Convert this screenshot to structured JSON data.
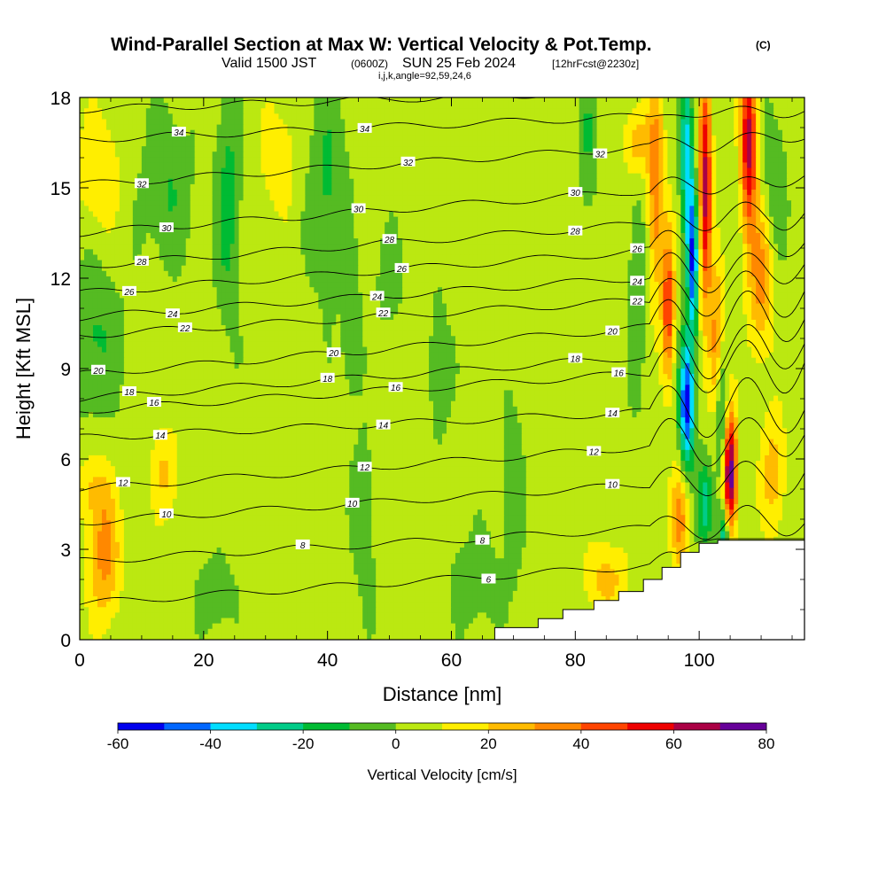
{
  "header": {
    "title": "Wind-Parallel Section at Max W: Vertical Velocity & Pot.Temp.",
    "title_unit": "(C)",
    "valid_prefix": "Valid 1500 JST",
    "valid_zulu": "(0600Z)",
    "valid_date": "SUN 25 Feb 2024",
    "valid_fcst": "[12hrFcst@2230z]",
    "indices": "i,j,k,angle=92,59,24,6"
  },
  "chart_data": {
    "type": "heatmap",
    "xlabel": "Distance [nm]",
    "ylabel": "Height [Kft MSL]",
    "xlim": [
      0,
      117
    ],
    "ylim": [
      0,
      18
    ],
    "x_ticks": [
      0,
      20,
      40,
      60,
      80,
      100
    ],
    "y_ticks": [
      0,
      3,
      6,
      9,
      12,
      15,
      18
    ],
    "colorbar": {
      "label": "Vertical Velocity [cm/s]",
      "tick_labels": [
        "-60",
        "-40",
        "-20",
        "0",
        "20",
        "40",
        "60",
        "80"
      ],
      "boundaries": [
        -60,
        -50,
        -40,
        -30,
        -20,
        -10,
        0,
        10,
        20,
        30,
        40,
        50,
        60,
        70,
        80
      ],
      "colors": [
        "#0000ee",
        "#0066ff",
        "#00ddff",
        "#00cc88",
        "#00bb33",
        "#55bb22",
        "#bbe811",
        "#ffee00",
        "#ffbb00",
        "#ff8800",
        "#ff4400",
        "#ee0000",
        "#aa0044",
        "#660099"
      ]
    },
    "terrain_kft": [
      [
        0,
        0
      ],
      [
        60,
        0
      ],
      [
        67,
        0.4
      ],
      [
        74,
        0.7
      ],
      [
        78,
        1.0
      ],
      [
        83,
        1.3
      ],
      [
        87,
        1.6
      ],
      [
        91,
        2.0
      ],
      [
        94,
        2.4
      ],
      [
        97,
        2.9
      ],
      [
        100,
        3.2
      ],
      [
        103,
        3.3
      ],
      [
        117,
        3.3
      ]
    ],
    "theta_contours": [
      {
        "value": 6,
        "left": 1.2,
        "right": 2.8,
        "label": "6",
        "label_x": 66
      },
      {
        "value": 8,
        "left": 2.6,
        "right": 4.0,
        "label": "8",
        "label_x": 36
      },
      {
        "value": 8,
        "left": 2.6,
        "right": 4.0,
        "label": "8",
        "label_x": 65
      },
      {
        "value": 10,
        "left": 3.9,
        "right": 5.5,
        "label": "10",
        "label_x": 14
      },
      {
        "value": 10,
        "left": 3.9,
        "right": 5.5,
        "label": "10",
        "label_x": 44
      },
      {
        "value": 10,
        "left": 3.9,
        "right": 5.5,
        "label": "10",
        "label_x": 86
      },
      {
        "value": 12,
        "left": 5.0,
        "right": 6.8,
        "label": "12",
        "label_x": 7
      },
      {
        "value": 12,
        "left": 5.0,
        "right": 6.8,
        "label": "12",
        "label_x": 46
      },
      {
        "value": 12,
        "left": 5.0,
        "right": 6.8,
        "label": "12",
        "label_x": 83
      },
      {
        "value": 14,
        "left": 6.7,
        "right": 7.8,
        "label": "14",
        "label_x": 13
      },
      {
        "value": 14,
        "left": 6.7,
        "right": 7.8,
        "label": "14",
        "label_x": 49
      },
      {
        "value": 14,
        "left": 6.7,
        "right": 7.8,
        "label": "14",
        "label_x": 86
      },
      {
        "value": 16,
        "left": 7.6,
        "right": 9.2,
        "label": "16",
        "label_x": 12
      },
      {
        "value": 16,
        "left": 7.6,
        "right": 9.2,
        "label": "16",
        "label_x": 51
      },
      {
        "value": 16,
        "left": 7.6,
        "right": 9.2,
        "label": "16",
        "label_x": 87
      },
      {
        "value": 18,
        "left": 8.0,
        "right": 9.8,
        "label": "18",
        "label_x": 8
      },
      {
        "value": 18,
        "left": 8.0,
        "right": 9.8,
        "label": "18",
        "label_x": 40
      },
      {
        "value": 18,
        "left": 8.0,
        "right": 9.8,
        "label": "18",
        "label_x": 80
      },
      {
        "value": 20,
        "left": 8.8,
        "right": 10.8,
        "label": "20",
        "label_x": 3
      },
      {
        "value": 20,
        "left": 8.8,
        "right": 10.8,
        "label": "20",
        "label_x": 41
      },
      {
        "value": 20,
        "left": 8.8,
        "right": 10.8,
        "label": "20",
        "label_x": 86
      },
      {
        "value": 22,
        "left": 10.1,
        "right": 11.6,
        "label": "22",
        "label_x": 17
      },
      {
        "value": 22,
        "left": 10.1,
        "right": 11.6,
        "label": "22",
        "label_x": 49
      },
      {
        "value": 22,
        "left": 10.1,
        "right": 11.6,
        "label": "22",
        "label_x": 90
      },
      {
        "value": 24,
        "left": 10.7,
        "right": 12.4,
        "label": "24",
        "label_x": 15
      },
      {
        "value": 24,
        "left": 10.7,
        "right": 12.4,
        "label": "24",
        "label_x": 48
      },
      {
        "value": 24,
        "left": 10.7,
        "right": 12.4,
        "label": "24",
        "label_x": 90
      },
      {
        "value": 26,
        "left": 11.5,
        "right": 13.3,
        "label": "26",
        "label_x": 8
      },
      {
        "value": 26,
        "left": 11.5,
        "right": 13.3,
        "label": "26",
        "label_x": 52
      },
      {
        "value": 26,
        "left": 11.5,
        "right": 13.3,
        "label": "26",
        "label_x": 90
      },
      {
        "value": 28,
        "left": 12.4,
        "right": 14.2,
        "label": "28",
        "label_x": 10
      },
      {
        "value": 28,
        "left": 12.4,
        "right": 14.2,
        "label": "28",
        "label_x": 50
      },
      {
        "value": 28,
        "left": 12.4,
        "right": 14.2,
        "label": "28",
        "label_x": 80
      },
      {
        "value": 30,
        "left": 13.5,
        "right": 15.3,
        "label": "30",
        "label_x": 14
      },
      {
        "value": 30,
        "left": 13.5,
        "right": 15.3,
        "label": "30",
        "label_x": 45
      },
      {
        "value": 30,
        "left": 13.5,
        "right": 15.3,
        "label": "30",
        "label_x": 80
      },
      {
        "value": 32,
        "left": 15.1,
        "right": 16.7,
        "label": "32",
        "label_x": 10
      },
      {
        "value": 32,
        "left": 15.1,
        "right": 16.7,
        "label": "32",
        "label_x": 53
      },
      {
        "value": 32,
        "left": 15.1,
        "right": 16.7,
        "label": "32",
        "label_x": 84
      },
      {
        "value": 34,
        "left": 16.6,
        "right": 17.6,
        "label": "34",
        "label_x": 16
      },
      {
        "value": 34,
        "left": 16.6,
        "right": 17.6,
        "label": "34",
        "label_x": 46
      },
      {
        "value": 36,
        "left": 17.6,
        "right": 18.4,
        "label": "",
        "label_x": 0
      }
    ],
    "w_features": [
      {
        "x": 4,
        "y": 2.8,
        "w": 30,
        "sx": 2.5,
        "sy": 2.2
      },
      {
        "x": 14,
        "y": 5.5,
        "w": 18,
        "sx": 2.2,
        "sy": 1.5
      },
      {
        "x": 2,
        "y": 5.0,
        "w": 15,
        "sx": 2.5,
        "sy": 1.2
      },
      {
        "x": 3,
        "y": 15.5,
        "w": 16,
        "sx": 3.5,
        "sy": 2.0
      },
      {
        "x": 32,
        "y": 16.0,
        "w": 14,
        "sx": 3.0,
        "sy": 1.8
      },
      {
        "x": 2,
        "y": 10.0,
        "w": -16,
        "sx": 4.5,
        "sy": 2.5
      },
      {
        "x": 14,
        "y": 15.0,
        "w": -14,
        "sx": 4.0,
        "sy": 2.5
      },
      {
        "x": 24,
        "y": 14.5,
        "w": -18,
        "sx": 2.0,
        "sy": 4.0
      },
      {
        "x": 40,
        "y": 15.0,
        "w": -16,
        "sx": 3.0,
        "sy": 3.5
      },
      {
        "x": 44,
        "y": 10.0,
        "w": -14,
        "sx": 1.5,
        "sy": 2.0
      },
      {
        "x": 50,
        "y": 12.0,
        "w": -12,
        "sx": 2.0,
        "sy": 1.5
      },
      {
        "x": 58,
        "y": 9.0,
        "w": -10,
        "sx": 2.0,
        "sy": 2.5
      },
      {
        "x": 70,
        "y": 5.0,
        "w": -12,
        "sx": 1.5,
        "sy": 3.0
      },
      {
        "x": 64,
        "y": 2.0,
        "w": -12,
        "sx": 4.0,
        "sy": 1.5
      },
      {
        "x": 22,
        "y": 1.5,
        "w": -12,
        "sx": 3.0,
        "sy": 1.2
      },
      {
        "x": 46,
        "y": 4.0,
        "w": -10,
        "sx": 2.0,
        "sy": 3.0
      },
      {
        "x": 82,
        "y": 16.5,
        "w": -14,
        "sx": 1.5,
        "sy": 2.5
      },
      {
        "x": 90,
        "y": 12.0,
        "w": -12,
        "sx": 1.5,
        "sy": 4.0
      },
      {
        "x": 90,
        "y": 16.5,
        "w": 25,
        "sx": 2.0,
        "sy": 1.2
      },
      {
        "x": 85,
        "y": 2.0,
        "w": 20,
        "sx": 3.5,
        "sy": 1.2
      },
      {
        "x": 93,
        "y": 15.0,
        "w": 35,
        "sx": 1.3,
        "sy": 3.5
      },
      {
        "x": 95,
        "y": 11.0,
        "w": 45,
        "sx": 1.0,
        "sy": 2.5
      },
      {
        "x": 97,
        "y": 4.0,
        "w": 30,
        "sx": 1.5,
        "sy": 1.8
      },
      {
        "x": 98,
        "y": 16.0,
        "w": -40,
        "sx": 1.0,
        "sy": 3.0
      },
      {
        "x": 99,
        "y": 12.5,
        "w": -50,
        "sx": 0.9,
        "sy": 2.5
      },
      {
        "x": 98,
        "y": 7.8,
        "w": -60,
        "sx": 1.2,
        "sy": 2.2
      },
      {
        "x": 101,
        "y": 4.5,
        "w": -30,
        "sx": 1.2,
        "sy": 1.5
      },
      {
        "x": 101,
        "y": 15.0,
        "w": 60,
        "sx": 1.0,
        "sy": 4.0
      },
      {
        "x": 103,
        "y": 9.5,
        "w": 45,
        "sx": 1.2,
        "sy": 2.5
      },
      {
        "x": 105,
        "y": 5.5,
        "w": 75,
        "sx": 1.1,
        "sy": 2.0
      },
      {
        "x": 103.5,
        "y": 8.0,
        "w": -40,
        "sx": 1.0,
        "sy": 2.5
      },
      {
        "x": 104,
        "y": 3.5,
        "w": -35,
        "sx": 1.0,
        "sy": 1.0
      },
      {
        "x": 108,
        "y": 16.5,
        "w": 60,
        "sx": 1.3,
        "sy": 3.0
      },
      {
        "x": 110,
        "y": 12.0,
        "w": 30,
        "sx": 2.0,
        "sy": 2.5
      },
      {
        "x": 112,
        "y": 5.5,
        "w": 22,
        "sx": 2.0,
        "sy": 2.0
      },
      {
        "x": 112,
        "y": 15.0,
        "w": -14,
        "sx": 2.0,
        "sy": 2.5
      }
    ]
  }
}
